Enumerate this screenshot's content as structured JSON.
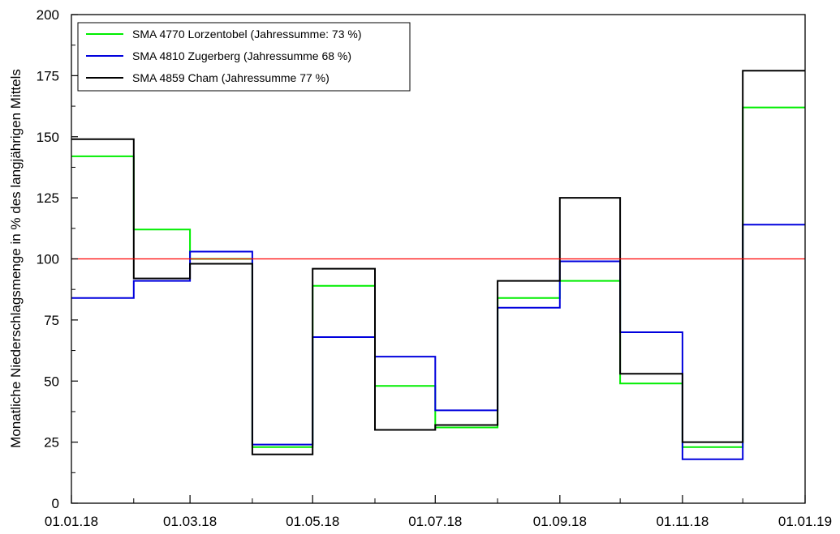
{
  "chart_data": {
    "type": "line",
    "step": true,
    "ylabel": "Monatliche Niederschlagsmenge in % des langjährigen Mittels",
    "xlabel": "",
    "ylim": [
      0,
      200
    ],
    "yticks": [
      0,
      25,
      50,
      75,
      100,
      125,
      150,
      175,
      200
    ],
    "xlim": [
      "01.01.18",
      "01.01.19"
    ],
    "xticks": [
      "01.01.18",
      "01.03.18",
      "01.05.18",
      "01.07.18",
      "01.09.18",
      "01.11.18",
      "01.01.19"
    ],
    "categories": [
      "Jan 2018",
      "Feb 2018",
      "Mar 2018",
      "Apr 2018",
      "May 2018",
      "Jun 2018",
      "Jul 2018",
      "Aug 2018",
      "Sep 2018",
      "Oct 2018",
      "Nov 2018",
      "Dec 2018"
    ],
    "reference_line": {
      "value": 100,
      "color": "#ff0000"
    },
    "legend_placement": "top-left",
    "grid": false,
    "series": [
      {
        "name": "SMA 4770 Lorzentobel (Jahressumme: 73 %)",
        "color": "#00ee00",
        "values": [
          142,
          112,
          100,
          23,
          89,
          48,
          31,
          84,
          91,
          49,
          23,
          162
        ]
      },
      {
        "name": "SMA 4810 Zugerberg (Jahressumme 68 %)",
        "color": "#0000dd",
        "values": [
          84,
          91,
          103,
          24,
          68,
          60,
          38,
          80,
          99,
          70,
          18,
          114
        ]
      },
      {
        "name": "SMA 4859 Cham (Jahressumme 77 %)",
        "color": "#000000",
        "values": [
          149,
          92,
          98,
          20,
          96,
          30,
          32,
          91,
          125,
          53,
          25,
          177
        ]
      }
    ]
  }
}
